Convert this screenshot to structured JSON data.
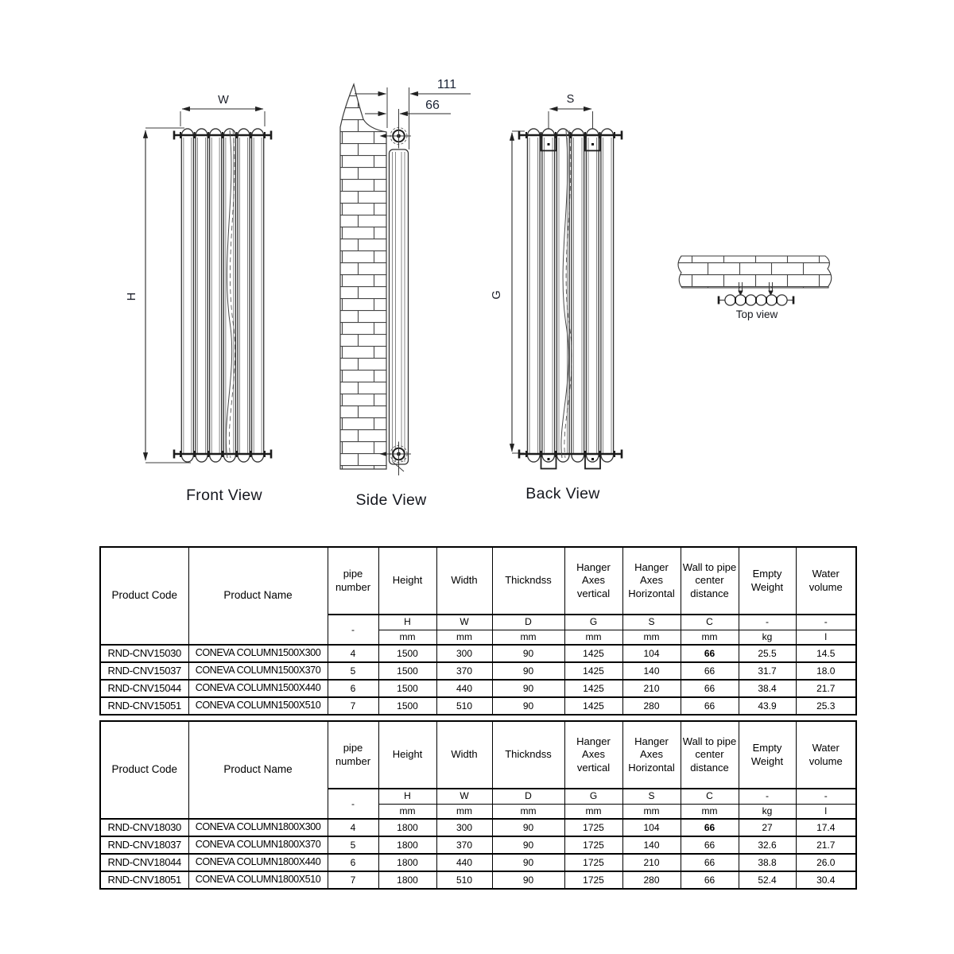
{
  "drawings": {
    "front": {
      "label": "Front View",
      "dim_w": "W",
      "dim_h": "H"
    },
    "side": {
      "label": "Side View",
      "dim_total_depth": "111",
      "dim_wall_to_center": "66"
    },
    "back": {
      "label": "Back View",
      "dim_s": "S",
      "dim_g": "G"
    },
    "top": {
      "label": "Top view"
    }
  },
  "tables": [
    {
      "headers": [
        "Product Code",
        "Product Name",
        "pipe number",
        "Height",
        "Width",
        "Thickndss",
        "Hanger Axes vertical",
        "Hanger Axes Horizontal",
        "Wall to pipe center distance",
        "Empty Weight",
        "Water volume"
      ],
      "symbols": [
        "-",
        "H",
        "W",
        "D",
        "G",
        "S",
        "C",
        "-",
        "-"
      ],
      "units": [
        "mm",
        "mm",
        "mm",
        "mm",
        "mm",
        "mm",
        "kg",
        "l"
      ],
      "rows": [
        [
          "RND-CNV15030",
          "CONEVA COLUMN1500X300",
          "4",
          "1500",
          "300",
          "90",
          "1425",
          "104",
          "66",
          "25.5",
          "14.5"
        ],
        [
          "RND-CNV15037",
          "CONEVA COLUMN1500X370",
          "5",
          "1500",
          "370",
          "90",
          "1425",
          "140",
          "66",
          "31.7",
          "18.0"
        ],
        [
          "RND-CNV15044",
          "CONEVA COLUMN1500X440",
          "6",
          "1500",
          "440",
          "90",
          "1425",
          "210",
          "66",
          "38.4",
          "21.7"
        ],
        [
          "RND-CNV15051",
          "CONEVA COLUMN1500X510",
          "7",
          "1500",
          "510",
          "90",
          "1425",
          "280",
          "66",
          "43.9",
          "25.3"
        ]
      ]
    },
    {
      "headers": [
        "Product Code",
        "Product Name",
        "pipe number",
        "Height",
        "Width",
        "Thickndss",
        "Hanger Axes vertical",
        "Hanger Axes Horizontal",
        "Wall to pipe center distance",
        "Empty Weight",
        "Water volume"
      ],
      "symbols": [
        "-",
        "H",
        "W",
        "D",
        "G",
        "S",
        "C",
        "-",
        "-"
      ],
      "units": [
        "mm",
        "mm",
        "mm",
        "mm",
        "mm",
        "mm",
        "kg",
        "l"
      ],
      "rows": [
        [
          "RND-CNV18030",
          "CONEVA COLUMN1800X300",
          "4",
          "1800",
          "300",
          "90",
          "1725",
          "104",
          "66",
          "27",
          "17.4"
        ],
        [
          "RND-CNV18037",
          "CONEVA COLUMN1800X370",
          "5",
          "1800",
          "370",
          "90",
          "1725",
          "140",
          "66",
          "32.6",
          "21.7"
        ],
        [
          "RND-CNV18044",
          "CONEVA COLUMN1800X440",
          "6",
          "1800",
          "440",
          "90",
          "1725",
          "210",
          "66",
          "38.8",
          "26.0"
        ],
        [
          "RND-CNV18051",
          "CONEVA COLUMN1800X510",
          "7",
          "1800",
          "510",
          "90",
          "1725",
          "280",
          "66",
          "52.4",
          "30.4"
        ]
      ]
    }
  ]
}
